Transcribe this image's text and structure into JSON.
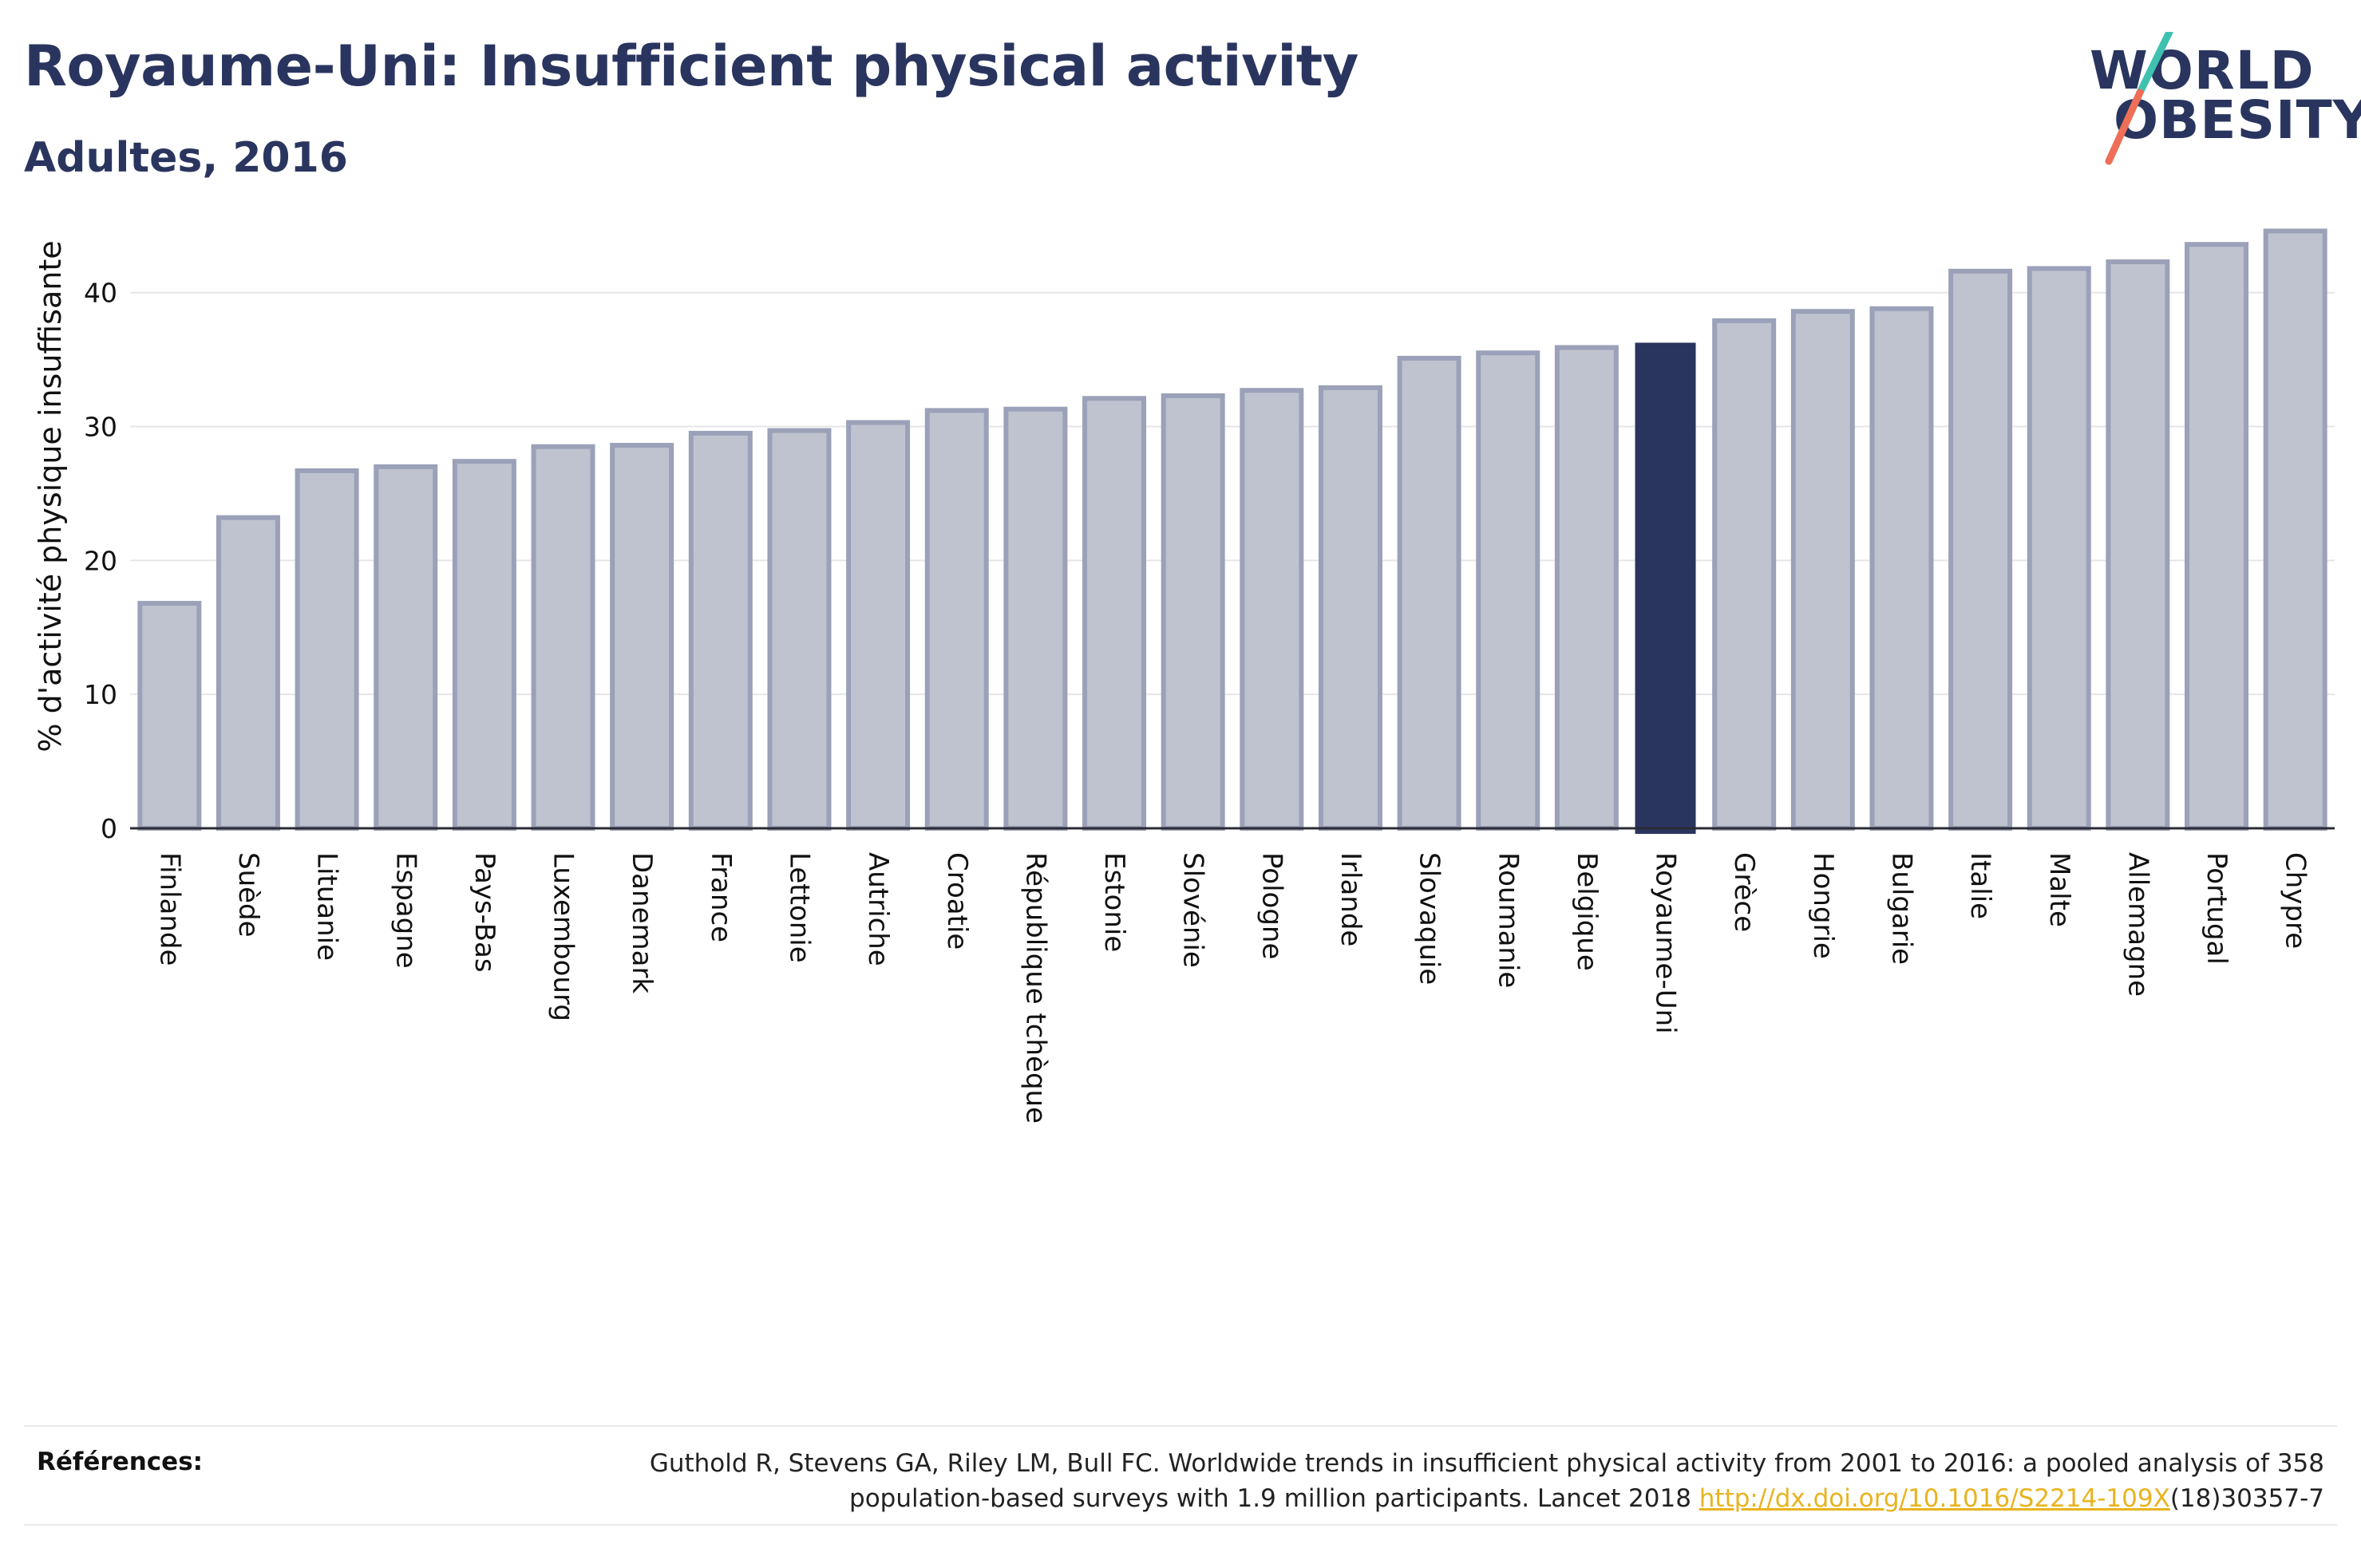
{
  "header": {
    "title": "Royaume-Uni: Insufficient physical activity",
    "subtitle": "Adultes, 2016"
  },
  "logo": {
    "line1": "WORLD",
    "line2": "OBESITY"
  },
  "colors": {
    "highlight": "#2a355f",
    "bar_fill": "#bfc3cf",
    "bar_stroke": "#9aa1b8",
    "link": "#e9b320",
    "logo_teal": "#3fc1b0",
    "logo_coral": "#ee6f57"
  },
  "chart_data": {
    "type": "bar",
    "ylabel": "% d'activité physique insuffisante",
    "xlabel": "",
    "ylim": [
      0,
      46
    ],
    "yticks": [
      0,
      10,
      20,
      30,
      40
    ],
    "grid": true,
    "highlight_category": "Royaume-Uni",
    "categories": [
      "Finlande",
      "Suède",
      "Lituanie",
      "Espagne",
      "Pays-Bas",
      "Luxembourg",
      "Danemark",
      "France",
      "Lettonie",
      "Autriche",
      "Croatie",
      "République tchèque",
      "Estonie",
      "Slovénie",
      "Pologne",
      "Irlande",
      "Slovaquie",
      "Roumanie",
      "Belgique",
      "Royaume-Uni",
      "Grèce",
      "Hongrie",
      "Bulgarie",
      "Italie",
      "Malte",
      "Allemagne",
      "Portugal",
      "Chypre"
    ],
    "values": [
      16.8,
      23.2,
      26.7,
      27.0,
      27.4,
      28.5,
      28.6,
      29.5,
      29.7,
      30.3,
      31.2,
      31.3,
      32.1,
      32.3,
      32.7,
      32.9,
      35.1,
      35.5,
      35.9,
      36.2,
      37.9,
      38.6,
      38.8,
      41.6,
      41.8,
      42.3,
      43.6,
      44.6
    ]
  },
  "references": {
    "label": "Références:",
    "text_line1": "Guthold R, Stevens GA, Riley LM, Bull FC. Worldwide trends in insufficient physical activity from 2001 to 2016: a pooled analysis of 358",
    "text_line2_before": "population-based surveys with 1.9 million participants. Lancet 2018 ",
    "link": "http://dx.doi.org/10.1016/S2214-109X",
    "text_line2_after": "(18)30357-7"
  }
}
